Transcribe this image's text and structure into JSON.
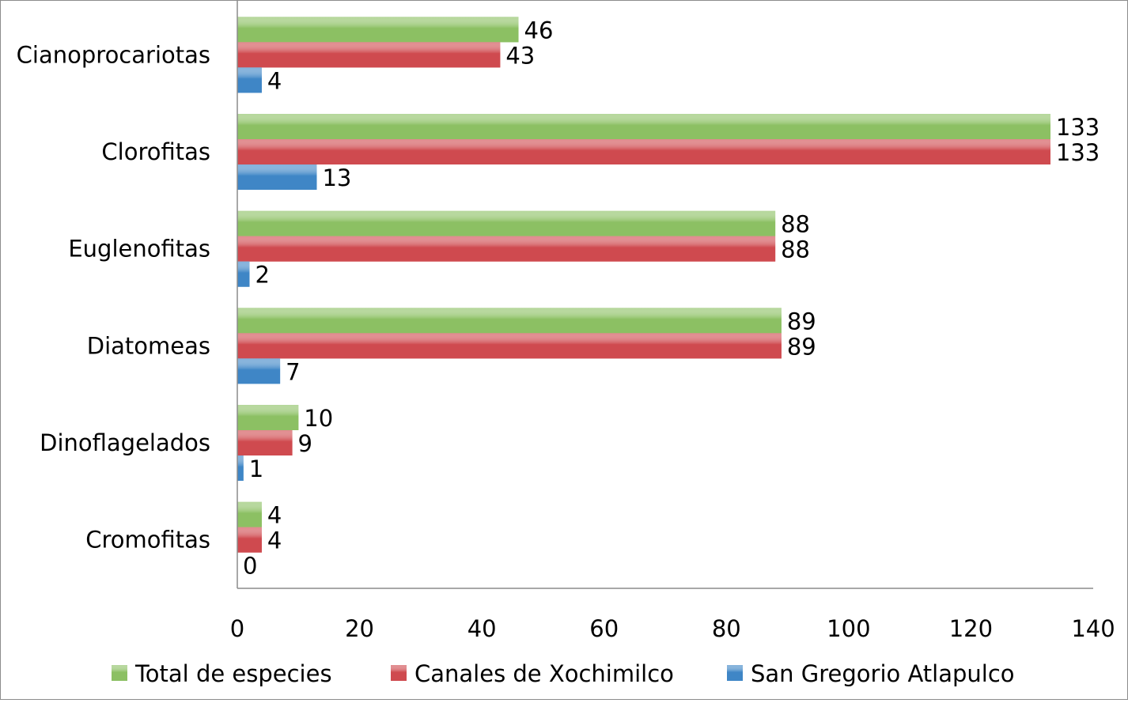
{
  "chart_data": {
    "type": "bar",
    "orientation": "horizontal",
    "categories": [
      "Cianoprocariotas",
      "Clorofitas",
      "Euglenofitas",
      "Diatomeas",
      "Dinoflagelados",
      "Cromofitas"
    ],
    "series": [
      {
        "name": "Total de especies",
        "color": "#8cc063",
        "values": [
          46,
          133,
          88,
          89,
          10,
          4
        ]
      },
      {
        "name": "Canales de Xochimilco",
        "color": "#cf4a4f",
        "values": [
          43,
          133,
          88,
          89,
          9,
          4
        ]
      },
      {
        "name": "San Gregorio Atlapulco",
        "color": "#3f86c6",
        "values": [
          4,
          13,
          2,
          7,
          1,
          0
        ]
      }
    ],
    "x_ticks": [
      "0",
      "20",
      "40",
      "60",
      "80",
      "100",
      "120",
      "140"
    ],
    "xlim": [
      0,
      140
    ],
    "grid": false,
    "legend_position": "bottom",
    "data_labels": true
  }
}
